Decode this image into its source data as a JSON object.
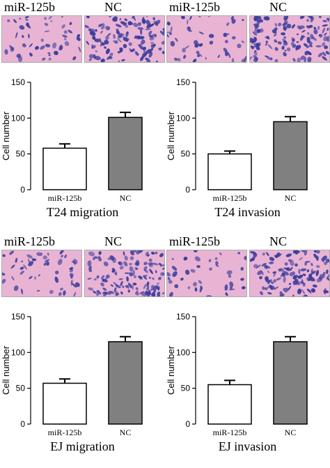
{
  "figure": {
    "panels": [
      {
        "id": "t24-migration",
        "image_labels": [
          "miR-125b",
          "NC"
        ],
        "caption": "T24 migration",
        "image_density": [
          0.35,
          0.9
        ]
      },
      {
        "id": "t24-invasion",
        "image_labels": [
          "miR-125b",
          "NC"
        ],
        "caption": "T24 invasion",
        "image_density": [
          0.35,
          0.9
        ]
      },
      {
        "id": "ej-migration",
        "image_labels": [
          "miR-125b",
          "NC"
        ],
        "caption": "EJ migration",
        "image_density": [
          0.35,
          0.9
        ]
      },
      {
        "id": "ej-invasion",
        "image_labels": [
          "miR-125b",
          "NC"
        ],
        "caption": "EJ invasion",
        "image_density": [
          0.3,
          0.9
        ]
      }
    ],
    "colors": {
      "bar_mir": "#ffffff",
      "bar_nc": "#808080",
      "stain_bg": "#e9b4d4",
      "cell": "#3b3d9c"
    }
  },
  "chart_data": [
    {
      "type": "bar",
      "categories": [
        "miR-125b",
        "NC"
      ],
      "values": [
        58,
        101
      ],
      "errors": [
        6,
        7
      ],
      "xlabel": "T24 migration",
      "ylabel": "Cell number",
      "ylim": [
        0,
        150
      ],
      "yticks": [
        0,
        50,
        100,
        150
      ]
    },
    {
      "type": "bar",
      "categories": [
        "miR-125b",
        "NC"
      ],
      "values": [
        50,
        95
      ],
      "errors": [
        4,
        7
      ],
      "xlabel": "T24 invasion",
      "ylabel": "Cell number",
      "ylim": [
        0,
        150
      ],
      "yticks": [
        0,
        50,
        100,
        150
      ]
    },
    {
      "type": "bar",
      "categories": [
        "miR-125b",
        "NC"
      ],
      "values": [
        57,
        115
      ],
      "errors": [
        6,
        7
      ],
      "xlabel": "EJ migration",
      "ylabel": "Cell number",
      "ylim": [
        0,
        150
      ],
      "yticks": [
        0,
        50,
        100,
        150
      ]
    },
    {
      "type": "bar",
      "categories": [
        "miR-125b",
        "NC"
      ],
      "values": [
        55,
        115
      ],
      "errors": [
        6,
        7
      ],
      "xlabel": "EJ invasion",
      "ylabel": "Cell number",
      "ylim": [
        0,
        150
      ],
      "yticks": [
        0,
        50,
        100,
        150
      ]
    }
  ]
}
